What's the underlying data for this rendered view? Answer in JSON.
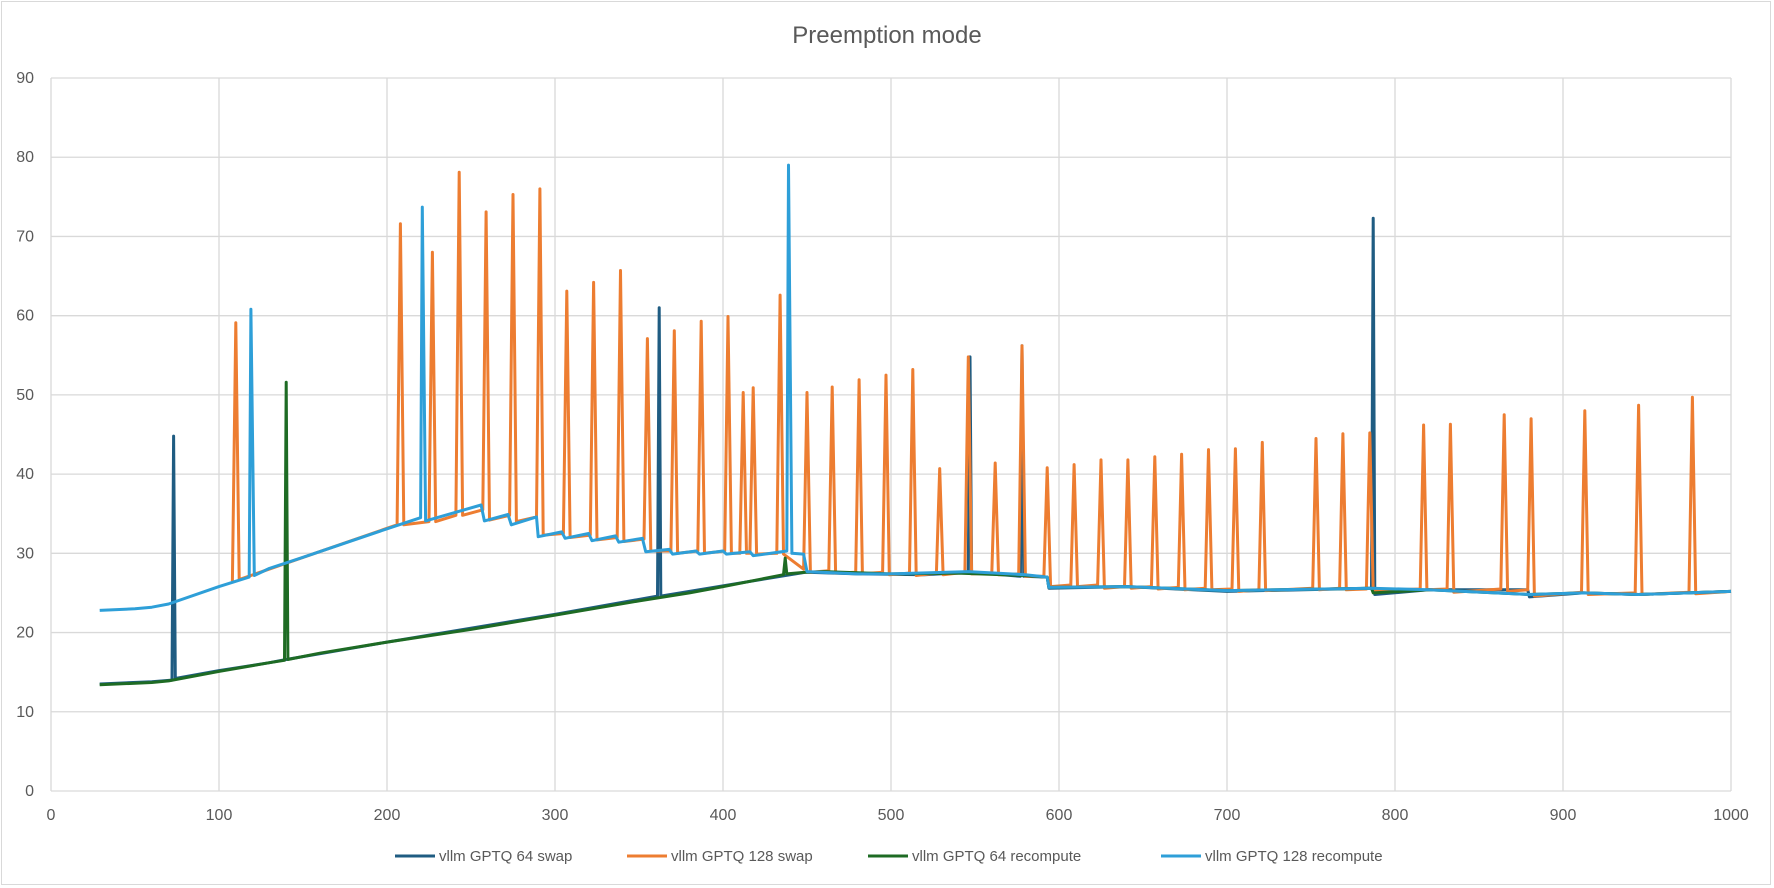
{
  "chart_data": {
    "type": "line",
    "title": "Preemption mode",
    "xlabel": "",
    "ylabel": "",
    "xlim": [
      0,
      1000
    ],
    "ylim": [
      0,
      90
    ],
    "x_ticks": [
      0,
      100,
      200,
      300,
      400,
      500,
      600,
      700,
      800,
      900,
      1000
    ],
    "y_ticks": [
      0,
      10,
      20,
      30,
      40,
      50,
      60,
      70,
      80,
      90
    ],
    "grid": true,
    "legend_position": "bottom",
    "series": [
      {
        "name": "vllm GPTQ  64 swap",
        "color": "#1f5c82",
        "points": [
          [
            29,
            13.5
          ],
          [
            60,
            13.8
          ],
          [
            72,
            14.0
          ],
          [
            73,
            44.8
          ],
          [
            74,
            14.2
          ],
          [
            100,
            15.2
          ],
          [
            130,
            16.2
          ],
          [
            140,
            16.6
          ],
          [
            200,
            18.8
          ],
          [
            300,
            22.3
          ],
          [
            361,
            24.6
          ],
          [
            362,
            61.0
          ],
          [
            363,
            24.6
          ],
          [
            400,
            25.9
          ],
          [
            449,
            27.6
          ],
          [
            450,
            27.6
          ],
          [
            480,
            27.4
          ],
          [
            520,
            27.3
          ],
          [
            546,
            27.6
          ],
          [
            547,
            54.8
          ],
          [
            548,
            27.6
          ],
          [
            577,
            27.1
          ],
          [
            578,
            56.2
          ],
          [
            579,
            27.1
          ],
          [
            593,
            27.0
          ],
          [
            594,
            25.6
          ],
          [
            640,
            25.8
          ],
          [
            700,
            25.2
          ],
          [
            786,
            25.6
          ],
          [
            787,
            72.3
          ],
          [
            788,
            24.8
          ],
          [
            820,
            25.4
          ],
          [
            879,
            25.4
          ],
          [
            880,
            24.5
          ],
          [
            912,
            25.0
          ],
          [
            945,
            24.8
          ],
          [
            1000,
            25.2
          ]
        ]
      },
      {
        "name": "vllm GPTQ  128 swap",
        "color": "#ed7d31",
        "points": [
          [
            108,
            26.5
          ],
          [
            110,
            59.1
          ],
          [
            112,
            26.7
          ],
          [
            206,
            33.6
          ],
          [
            208,
            71.6
          ],
          [
            210,
            33.6
          ],
          [
            225,
            34.0
          ],
          [
            227,
            68.0
          ],
          [
            229,
            34.0
          ],
          [
            241,
            34.8
          ],
          [
            243,
            78.1
          ],
          [
            245,
            34.8
          ],
          [
            257,
            35.5
          ],
          [
            259,
            73.1
          ],
          [
            261,
            34.2
          ],
          [
            273,
            34.8
          ],
          [
            275,
            75.3
          ],
          [
            277,
            34.0
          ],
          [
            289,
            34.6
          ],
          [
            291,
            76.0
          ],
          [
            293,
            32.3
          ],
          [
            305,
            32.5
          ],
          [
            307,
            63.1
          ],
          [
            309,
            32.0
          ],
          [
            321,
            32.3
          ],
          [
            323,
            64.2
          ],
          [
            325,
            31.7
          ],
          [
            337,
            32.0
          ],
          [
            339,
            65.7
          ],
          [
            341,
            31.5
          ],
          [
            353,
            31.8
          ],
          [
            355,
            57.1
          ],
          [
            357,
            30.3
          ],
          [
            369,
            30.3
          ],
          [
            371,
            58.1
          ],
          [
            373,
            30.0
          ],
          [
            385,
            30.3
          ],
          [
            387,
            59.3
          ],
          [
            389,
            30.0
          ],
          [
            401,
            30.3
          ],
          [
            403,
            59.9
          ],
          [
            405,
            30.0
          ],
          [
            410,
            30.0
          ],
          [
            412,
            50.3
          ],
          [
            414,
            30.0
          ],
          [
            416,
            30.0
          ],
          [
            418,
            50.9
          ],
          [
            420,
            29.9
          ],
          [
            432,
            30.0
          ],
          [
            434,
            62.6
          ],
          [
            436,
            29.9
          ],
          [
            448,
            28.0
          ],
          [
            450,
            50.3
          ],
          [
            452,
            27.6
          ],
          [
            463,
            27.8
          ],
          [
            465,
            51.0
          ],
          [
            467,
            27.5
          ],
          [
            479,
            27.6
          ],
          [
            481,
            51.9
          ],
          [
            483,
            27.4
          ],
          [
            495,
            27.6
          ],
          [
            497,
            52.5
          ],
          [
            499,
            27.3
          ],
          [
            511,
            27.5
          ],
          [
            513,
            53.2
          ],
          [
            515,
            27.2
          ],
          [
            527,
            27.5
          ],
          [
            529,
            40.7
          ],
          [
            531,
            27.3
          ],
          [
            544,
            27.6
          ],
          [
            546,
            54.8
          ],
          [
            548,
            27.4
          ],
          [
            560,
            27.5
          ],
          [
            562,
            41.4
          ],
          [
            564,
            27.3
          ],
          [
            576,
            27.4
          ],
          [
            578,
            56.2
          ],
          [
            580,
            27.1
          ],
          [
            591,
            27.1
          ],
          [
            593,
            40.8
          ],
          [
            595,
            25.8
          ],
          [
            607,
            26.0
          ],
          [
            609,
            41.2
          ],
          [
            611,
            25.8
          ],
          [
            623,
            26.0
          ],
          [
            625,
            41.8
          ],
          [
            627,
            25.6
          ],
          [
            639,
            25.8
          ],
          [
            641,
            41.8
          ],
          [
            643,
            25.6
          ],
          [
            655,
            25.8
          ],
          [
            657,
            42.2
          ],
          [
            659,
            25.5
          ],
          [
            671,
            25.7
          ],
          [
            673,
            42.5
          ],
          [
            675,
            25.4
          ],
          [
            687,
            25.6
          ],
          [
            689,
            43.1
          ],
          [
            691,
            25.4
          ],
          [
            703,
            25.5
          ],
          [
            705,
            43.2
          ],
          [
            707,
            25.2
          ],
          [
            719,
            25.4
          ],
          [
            721,
            44.0
          ],
          [
            723,
            25.3
          ],
          [
            751,
            25.6
          ],
          [
            753,
            44.5
          ],
          [
            755,
            25.4
          ],
          [
            767,
            25.6
          ],
          [
            769,
            45.1
          ],
          [
            771,
            25.4
          ],
          [
            783,
            25.5
          ],
          [
            785,
            45.2
          ],
          [
            787,
            25.3
          ],
          [
            815,
            25.5
          ],
          [
            817,
            46.2
          ],
          [
            819,
            25.4
          ],
          [
            831,
            25.5
          ],
          [
            833,
            46.3
          ],
          [
            835,
            25.1
          ],
          [
            863,
            25.5
          ],
          [
            865,
            47.5
          ],
          [
            867,
            25.2
          ],
          [
            879,
            25.4
          ],
          [
            881,
            47.0
          ],
          [
            883,
            24.6
          ],
          [
            911,
            25.1
          ],
          [
            913,
            48.0
          ],
          [
            915,
            24.8
          ],
          [
            943,
            25.0
          ],
          [
            945,
            48.7
          ],
          [
            947,
            24.8
          ],
          [
            975,
            25.1
          ],
          [
            977,
            49.7
          ],
          [
            979,
            24.9
          ],
          [
            1000,
            25.2
          ]
        ]
      },
      {
        "name": "vllm GPTQ  64 recompute",
        "color": "#1e6b24",
        "points": [
          [
            29,
            13.4
          ],
          [
            60,
            13.7
          ],
          [
            70,
            13.9
          ],
          [
            100,
            15.1
          ],
          [
            130,
            16.2
          ],
          [
            139,
            16.5
          ],
          [
            140,
            51.6
          ],
          [
            141,
            16.6
          ],
          [
            160,
            17.4
          ],
          [
            200,
            18.8
          ],
          [
            250,
            20.4
          ],
          [
            300,
            22.2
          ],
          [
            350,
            24.0
          ],
          [
            380,
            25.0
          ],
          [
            400,
            25.8
          ],
          [
            436,
            27.3
          ],
          [
            437,
            29.4
          ],
          [
            438,
            27.4
          ],
          [
            449,
            27.6
          ],
          [
            460,
            27.7
          ],
          [
            500,
            27.4
          ],
          [
            540,
            27.5
          ],
          [
            580,
            27.2
          ],
          [
            593,
            27.0
          ],
          [
            594,
            25.7
          ],
          [
            640,
            25.8
          ],
          [
            700,
            25.3
          ],
          [
            786,
            25.6
          ],
          [
            787,
            25.0
          ],
          [
            820,
            25.4
          ],
          [
            880,
            24.8
          ],
          [
            912,
            25.0
          ],
          [
            945,
            24.8
          ],
          [
            1000,
            25.2
          ]
        ]
      },
      {
        "name": "vllm GPTQ  128 recompute",
        "color": "#2e9fd8",
        "points": [
          [
            29,
            22.8
          ],
          [
            50,
            23.0
          ],
          [
            60,
            23.2
          ],
          [
            70,
            23.6
          ],
          [
            100,
            25.8
          ],
          [
            118,
            27.0
          ],
          [
            119,
            60.8
          ],
          [
            121,
            27.2
          ],
          [
            130,
            28.1
          ],
          [
            150,
            29.5
          ],
          [
            200,
            33.1
          ],
          [
            220,
            34.5
          ],
          [
            221,
            73.7
          ],
          [
            223,
            34.1
          ],
          [
            256,
            36.1
          ],
          [
            258,
            34.1
          ],
          [
            272,
            34.9
          ],
          [
            274,
            33.6
          ],
          [
            289,
            34.6
          ],
          [
            290,
            32.1
          ],
          [
            304,
            32.7
          ],
          [
            306,
            31.9
          ],
          [
            320,
            32.5
          ],
          [
            322,
            31.6
          ],
          [
            336,
            32.2
          ],
          [
            338,
            31.4
          ],
          [
            352,
            31.9
          ],
          [
            354,
            30.2
          ],
          [
            368,
            30.5
          ],
          [
            370,
            29.9
          ],
          [
            384,
            30.3
          ],
          [
            386,
            29.9
          ],
          [
            400,
            30.3
          ],
          [
            402,
            29.9
          ],
          [
            416,
            30.2
          ],
          [
            418,
            29.7
          ],
          [
            438,
            30.3
          ],
          [
            439,
            79.0
          ],
          [
            441,
            30.0
          ],
          [
            448,
            29.9
          ],
          [
            450,
            27.7
          ],
          [
            480,
            27.4
          ],
          [
            500,
            27.4
          ],
          [
            546,
            27.7
          ],
          [
            580,
            27.3
          ],
          [
            593,
            27.0
          ],
          [
            594,
            25.7
          ],
          [
            640,
            25.8
          ],
          [
            700,
            25.3
          ],
          [
            786,
            25.6
          ],
          [
            820,
            25.4
          ],
          [
            880,
            24.8
          ],
          [
            912,
            25.0
          ],
          [
            945,
            24.8
          ],
          [
            1000,
            25.2
          ]
        ]
      }
    ]
  }
}
